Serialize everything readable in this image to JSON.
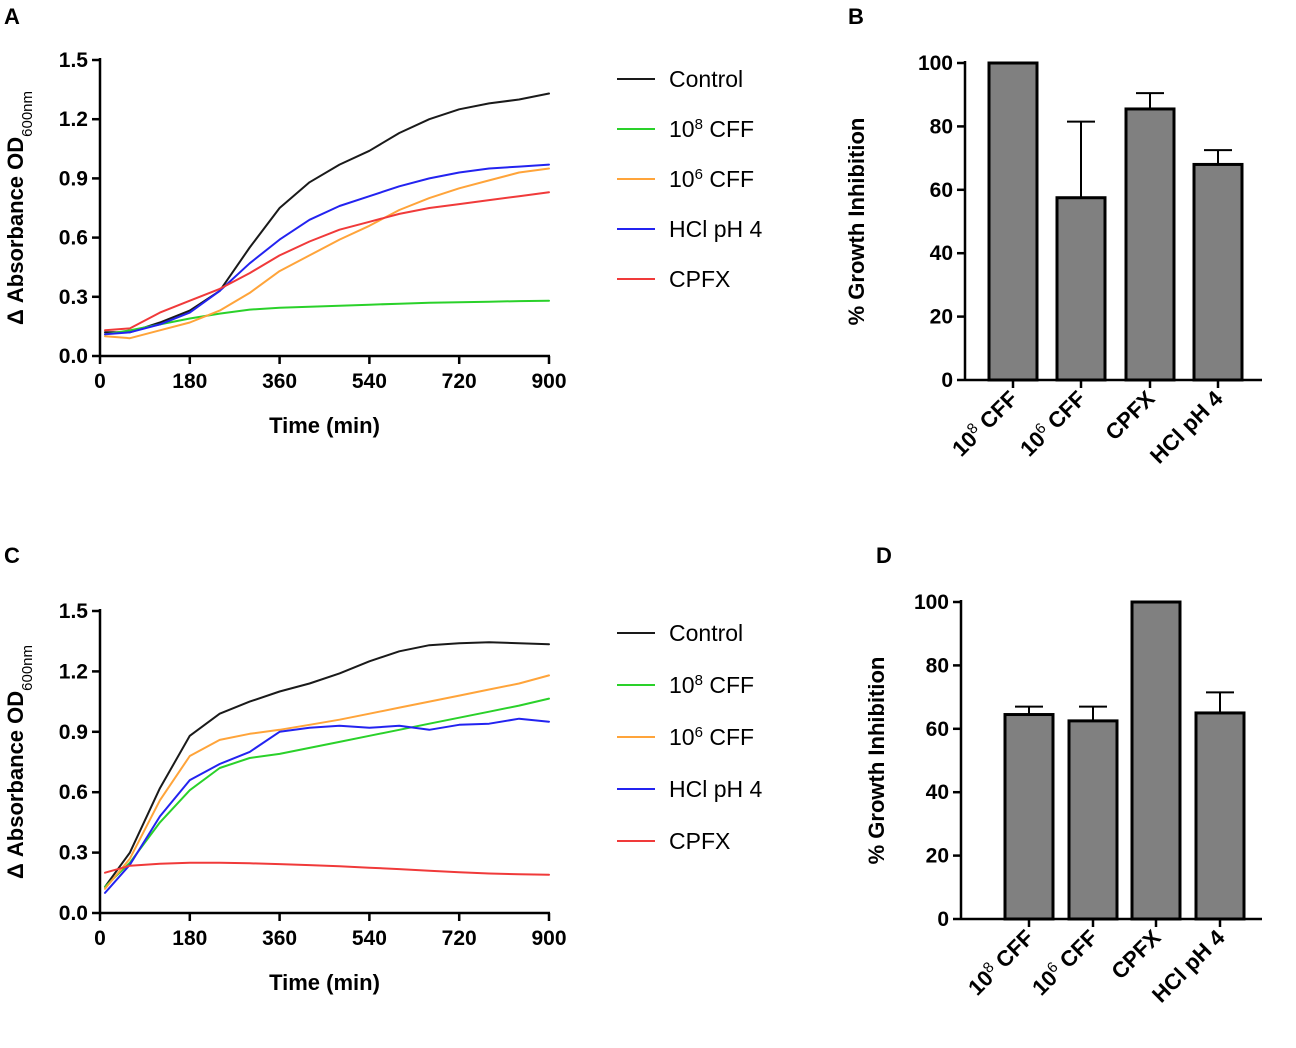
{
  "panels": [
    "A",
    "B",
    "C",
    "D"
  ],
  "colors": {
    "control": "#1a1a1a",
    "cff8": "#2ad12a",
    "cff6": "#ffa43a",
    "hcl": "#2323f0",
    "cpfx": "#f03a3a",
    "bar_fill": "#808080",
    "bar_edge": "#000000"
  },
  "chart_data": [
    {
      "panel": "A",
      "type": "line",
      "xlabel": "Time (min)",
      "ylabel_prefix": "Δ Absorbance OD",
      "ylabel_subscript": "600nm",
      "xlim": [
        0,
        900
      ],
      "ylim": [
        0,
        1.5
      ],
      "xticks": [
        0,
        180,
        360,
        540,
        720,
        900
      ],
      "yticks": [
        0.0,
        0.3,
        0.6,
        0.9,
        1.2,
        1.5
      ],
      "xtick_labels": [
        "0",
        "180",
        "360",
        "540",
        "720",
        "900"
      ],
      "ytick_labels": [
        "0.0",
        "0.3",
        "0.6",
        "0.9",
        "1.2",
        "1.5"
      ],
      "series": [
        {
          "key": "control",
          "name": "Control",
          "legend_base": "Control",
          "legend_sup": "",
          "legend_rest": "",
          "color_key": "control",
          "points": [
            [
              10,
              0.12
            ],
            [
              60,
              0.12
            ],
            [
              120,
              0.17
            ],
            [
              180,
              0.23
            ],
            [
              240,
              0.33
            ],
            [
              300,
              0.55
            ],
            [
              360,
              0.75
            ],
            [
              420,
              0.88
            ],
            [
              480,
              0.97
            ],
            [
              540,
              1.04
            ],
            [
              600,
              1.13
            ],
            [
              660,
              1.2
            ],
            [
              720,
              1.25
            ],
            [
              780,
              1.28
            ],
            [
              840,
              1.3
            ],
            [
              900,
              1.33
            ]
          ]
        },
        {
          "key": "cff8",
          "name": "10^8 CFF",
          "legend_base": "10",
          "legend_sup": "8",
          "legend_rest": " CFF",
          "color_key": "cff8",
          "points": [
            [
              10,
              0.11
            ],
            [
              60,
              0.13
            ],
            [
              120,
              0.16
            ],
            [
              180,
              0.19
            ],
            [
              240,
              0.215
            ],
            [
              300,
              0.235
            ],
            [
              360,
              0.245
            ],
            [
              420,
              0.25
            ],
            [
              480,
              0.255
            ],
            [
              540,
              0.26
            ],
            [
              600,
              0.265
            ],
            [
              660,
              0.27
            ],
            [
              720,
              0.272
            ],
            [
              780,
              0.275
            ],
            [
              840,
              0.278
            ],
            [
              900,
              0.28
            ]
          ]
        },
        {
          "key": "cff6",
          "name": "10^6 CFF",
          "legend_base": "10",
          "legend_sup": "6",
          "legend_rest": " CFF",
          "color_key": "cff6",
          "points": [
            [
              10,
              0.1
            ],
            [
              60,
              0.09
            ],
            [
              120,
              0.13
            ],
            [
              180,
              0.17
            ],
            [
              240,
              0.23
            ],
            [
              300,
              0.32
            ],
            [
              360,
              0.43
            ],
            [
              420,
              0.51
            ],
            [
              480,
              0.59
            ],
            [
              540,
              0.66
            ],
            [
              600,
              0.74
            ],
            [
              660,
              0.8
            ],
            [
              720,
              0.85
            ],
            [
              780,
              0.89
            ],
            [
              840,
              0.93
            ],
            [
              900,
              0.95
            ]
          ]
        },
        {
          "key": "hcl",
          "name": "HCl pH 4",
          "legend_base": "HCl pH 4",
          "legend_sup": "",
          "legend_rest": "",
          "color_key": "hcl",
          "points": [
            [
              10,
              0.11
            ],
            [
              60,
              0.12
            ],
            [
              120,
              0.16
            ],
            [
              180,
              0.22
            ],
            [
              240,
              0.33
            ],
            [
              300,
              0.47
            ],
            [
              360,
              0.59
            ],
            [
              420,
              0.69
            ],
            [
              480,
              0.76
            ],
            [
              540,
              0.81
            ],
            [
              600,
              0.86
            ],
            [
              660,
              0.9
            ],
            [
              720,
              0.93
            ],
            [
              780,
              0.95
            ],
            [
              840,
              0.96
            ],
            [
              900,
              0.97
            ]
          ]
        },
        {
          "key": "cpfx",
          "name": "CPFX",
          "legend_base": "CPFX",
          "legend_sup": "",
          "legend_rest": "",
          "color_key": "cpfx",
          "points": [
            [
              10,
              0.13
            ],
            [
              60,
              0.14
            ],
            [
              120,
              0.22
            ],
            [
              180,
              0.28
            ],
            [
              240,
              0.34
            ],
            [
              300,
              0.42
            ],
            [
              360,
              0.51
            ],
            [
              420,
              0.58
            ],
            [
              480,
              0.64
            ],
            [
              540,
              0.68
            ],
            [
              600,
              0.72
            ],
            [
              660,
              0.75
            ],
            [
              720,
              0.77
            ],
            [
              780,
              0.79
            ],
            [
              840,
              0.81
            ],
            [
              900,
              0.83
            ]
          ]
        }
      ]
    },
    {
      "panel": "B",
      "type": "bar",
      "ylabel": "% Growth Inhibition",
      "ylim": [
        0,
        100
      ],
      "yticks": [
        0,
        20,
        40,
        60,
        80,
        100
      ],
      "ytick_labels": [
        "0",
        "20",
        "40",
        "60",
        "80",
        "100"
      ],
      "categories": [
        {
          "base": "10",
          "sup": "8",
          "rest": " CFF"
        },
        {
          "base": "10",
          "sup": "6",
          "rest": " CFF"
        },
        {
          "base": "CPFX",
          "sup": "",
          "rest": ""
        },
        {
          "base": "HCl pH 4",
          "sup": "",
          "rest": ""
        }
      ],
      "values": [
        100,
        57.5,
        85.5,
        68
      ],
      "errors": [
        0,
        24,
        5,
        4.5
      ]
    },
    {
      "panel": "C",
      "type": "line",
      "xlabel": "Time (min)",
      "ylabel_prefix": "Δ Absorbance OD",
      "ylabel_subscript": "600nm",
      "xlim": [
        0,
        900
      ],
      "ylim": [
        0,
        1.5
      ],
      "xticks": [
        0,
        180,
        360,
        540,
        720,
        900
      ],
      "yticks": [
        0.0,
        0.3,
        0.6,
        0.9,
        1.2,
        1.5
      ],
      "xtick_labels": [
        "0",
        "180",
        "360",
        "540",
        "720",
        "900"
      ],
      "ytick_labels": [
        "0.0",
        "0.3",
        "0.6",
        "0.9",
        "1.2",
        "1.5"
      ],
      "series": [
        {
          "key": "control",
          "name": "Control",
          "legend_base": "Control",
          "legend_sup": "",
          "legend_rest": "",
          "color_key": "control",
          "points": [
            [
              10,
              0.13
            ],
            [
              60,
              0.3
            ],
            [
              120,
              0.62
            ],
            [
              180,
              0.88
            ],
            [
              240,
              0.99
            ],
            [
              300,
              1.05
            ],
            [
              360,
              1.1
            ],
            [
              420,
              1.14
            ],
            [
              480,
              1.19
            ],
            [
              540,
              1.25
            ],
            [
              600,
              1.3
            ],
            [
              660,
              1.33
            ],
            [
              720,
              1.34
            ],
            [
              780,
              1.345
            ],
            [
              840,
              1.34
            ],
            [
              900,
              1.335
            ]
          ]
        },
        {
          "key": "cff8",
          "name": "10^8 CFF",
          "legend_base": "10",
          "legend_sup": "8",
          "legend_rest": " CFF",
          "color_key": "cff8",
          "points": [
            [
              10,
              0.13
            ],
            [
              60,
              0.25
            ],
            [
              120,
              0.45
            ],
            [
              180,
              0.61
            ],
            [
              240,
              0.72
            ],
            [
              300,
              0.77
            ],
            [
              360,
              0.79
            ],
            [
              420,
              0.82
            ],
            [
              480,
              0.85
            ],
            [
              540,
              0.88
            ],
            [
              600,
              0.91
            ],
            [
              660,
              0.94
            ],
            [
              720,
              0.97
            ],
            [
              780,
              1.0
            ],
            [
              840,
              1.03
            ],
            [
              900,
              1.065
            ]
          ]
        },
        {
          "key": "cff6",
          "name": "10^6 CFF",
          "legend_base": "10",
          "legend_sup": "6",
          "legend_rest": " CFF",
          "color_key": "cff6",
          "points": [
            [
              10,
              0.12
            ],
            [
              60,
              0.27
            ],
            [
              120,
              0.56
            ],
            [
              180,
              0.78
            ],
            [
              240,
              0.86
            ],
            [
              300,
              0.89
            ],
            [
              360,
              0.91
            ],
            [
              420,
              0.935
            ],
            [
              480,
              0.96
            ],
            [
              540,
              0.99
            ],
            [
              600,
              1.02
            ],
            [
              660,
              1.05
            ],
            [
              720,
              1.08
            ],
            [
              780,
              1.11
            ],
            [
              840,
              1.14
            ],
            [
              900,
              1.18
            ]
          ]
        },
        {
          "key": "hcl",
          "name": "HCl pH 4",
          "legend_base": "HCl pH 4",
          "legend_sup": "",
          "legend_rest": "",
          "color_key": "hcl",
          "points": [
            [
              10,
              0.1
            ],
            [
              60,
              0.24
            ],
            [
              120,
              0.48
            ],
            [
              180,
              0.66
            ],
            [
              240,
              0.74
            ],
            [
              300,
              0.8
            ],
            [
              360,
              0.9
            ],
            [
              420,
              0.92
            ],
            [
              480,
              0.93
            ],
            [
              540,
              0.92
            ],
            [
              600,
              0.93
            ],
            [
              660,
              0.91
            ],
            [
              720,
              0.935
            ],
            [
              780,
              0.94
            ],
            [
              840,
              0.965
            ],
            [
              900,
              0.95
            ]
          ]
        },
        {
          "key": "cpfx",
          "name": "CPFX",
          "legend_base": "CPFX",
          "legend_sup": "",
          "legend_rest": "",
          "color_key": "cpfx",
          "points": [
            [
              10,
              0.2
            ],
            [
              60,
              0.235
            ],
            [
              120,
              0.245
            ],
            [
              180,
              0.25
            ],
            [
              240,
              0.25
            ],
            [
              300,
              0.247
            ],
            [
              360,
              0.243
            ],
            [
              420,
              0.238
            ],
            [
              480,
              0.232
            ],
            [
              540,
              0.225
            ],
            [
              600,
              0.218
            ],
            [
              660,
              0.21
            ],
            [
              720,
              0.202
            ],
            [
              780,
              0.196
            ],
            [
              840,
              0.192
            ],
            [
              900,
              0.19
            ]
          ]
        }
      ]
    },
    {
      "panel": "D",
      "type": "bar",
      "ylabel": "% Growth Inhibition",
      "ylim": [
        0,
        100
      ],
      "yticks": [
        0,
        20,
        40,
        60,
        80,
        100
      ],
      "ytick_labels": [
        "0",
        "20",
        "40",
        "60",
        "80",
        "100"
      ],
      "categories": [
        {
          "base": "10",
          "sup": "8",
          "rest": " CFF"
        },
        {
          "base": "10",
          "sup": "6",
          "rest": " CFF"
        },
        {
          "base": "CPFX",
          "sup": "",
          "rest": ""
        },
        {
          "base": "HCl pH 4",
          "sup": "",
          "rest": ""
        }
      ],
      "values": [
        64.5,
        62.5,
        100,
        65
      ],
      "errors": [
        2.5,
        4.5,
        0,
        6.5
      ]
    }
  ]
}
